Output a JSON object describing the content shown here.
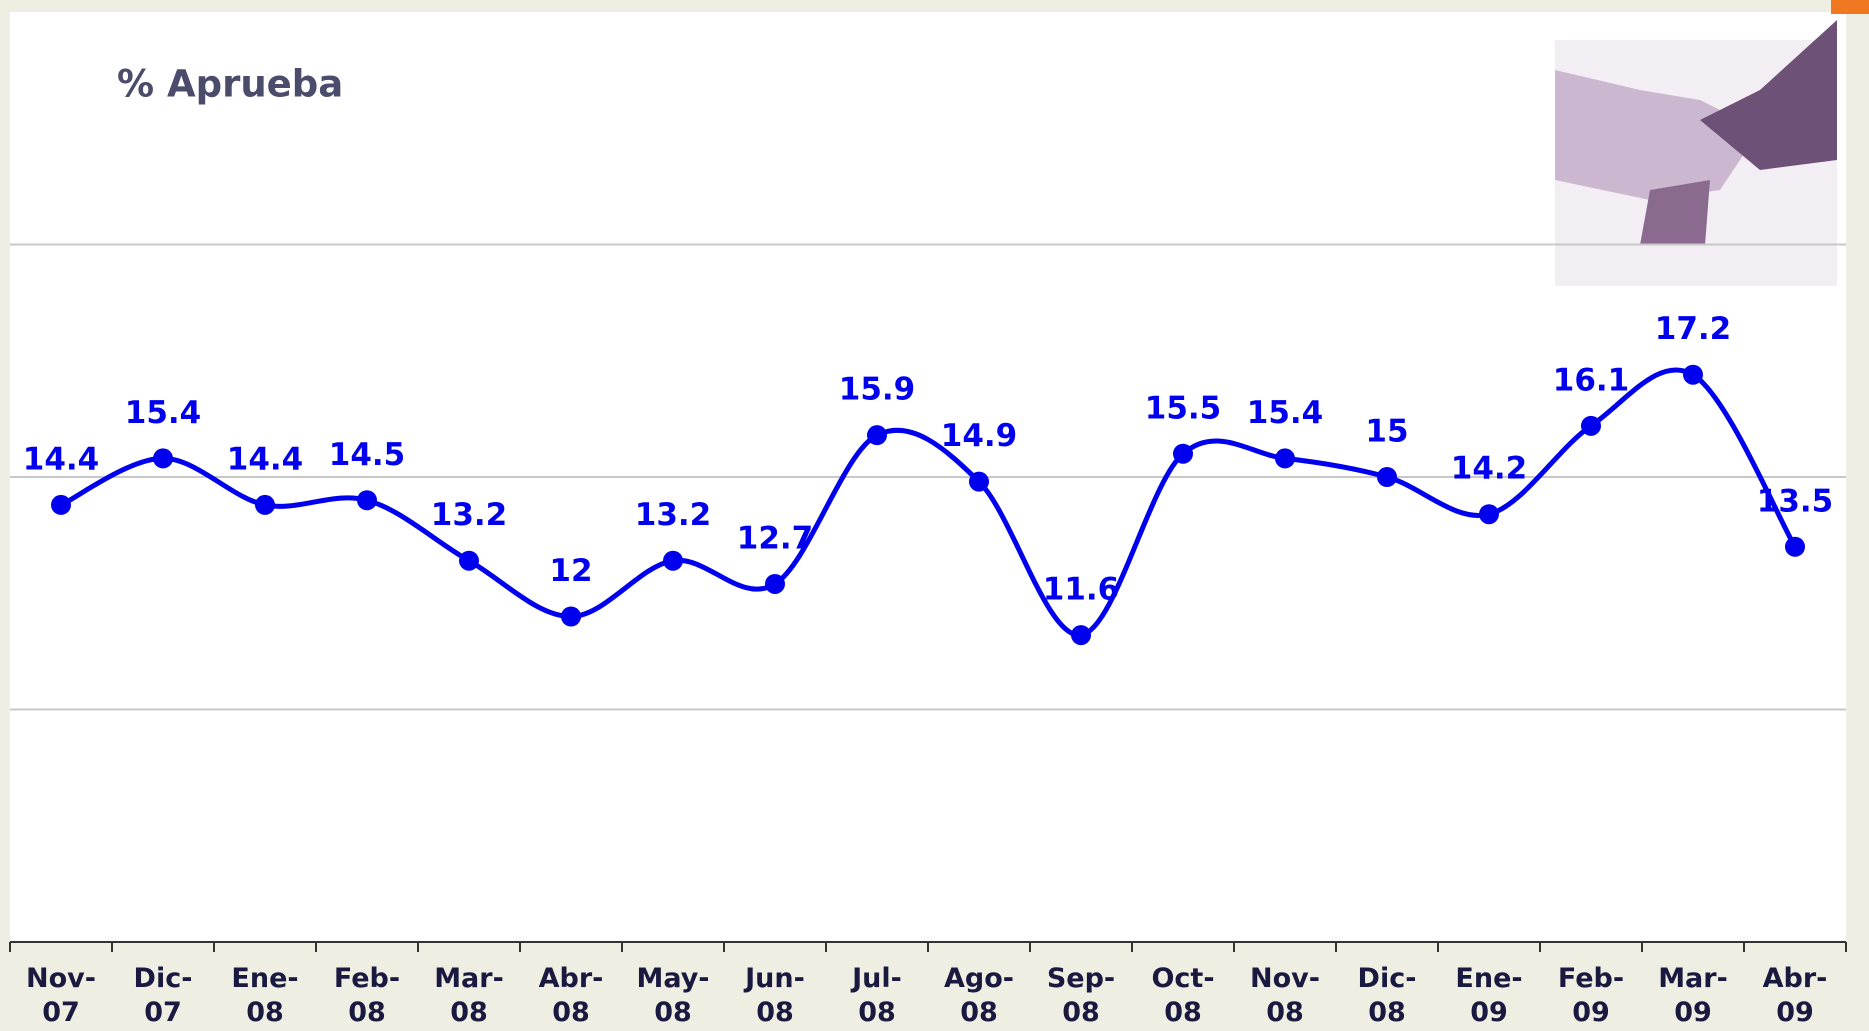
{
  "chart_data": {
    "type": "line",
    "title": "% Aprueba",
    "categories": [
      "Nov-07",
      "Dic-07",
      "Ene-08",
      "Feb-08",
      "Mar-08",
      "Abr-08",
      "May-08",
      "Jun-08",
      "Jul-08",
      "Ago-08",
      "Sep-08",
      "Oct-08",
      "Nov-08",
      "Dic-08",
      "Ene-09",
      "Feb-09",
      "Mar-09",
      "Abr-09"
    ],
    "series": [
      {
        "color": "#0000ee",
        "values": [
          14.4,
          15.4,
          14.4,
          14.5,
          13.2,
          12.0,
          13.2,
          12.7,
          15.9,
          14.9,
          11.6,
          15.5,
          15.4,
          15.0,
          14.2,
          16.1,
          17.2,
          13.5
        ]
      }
    ],
    "ylim": [
      5,
      25
    ],
    "yticks": [
      10,
      15,
      20
    ],
    "grid": true
  }
}
